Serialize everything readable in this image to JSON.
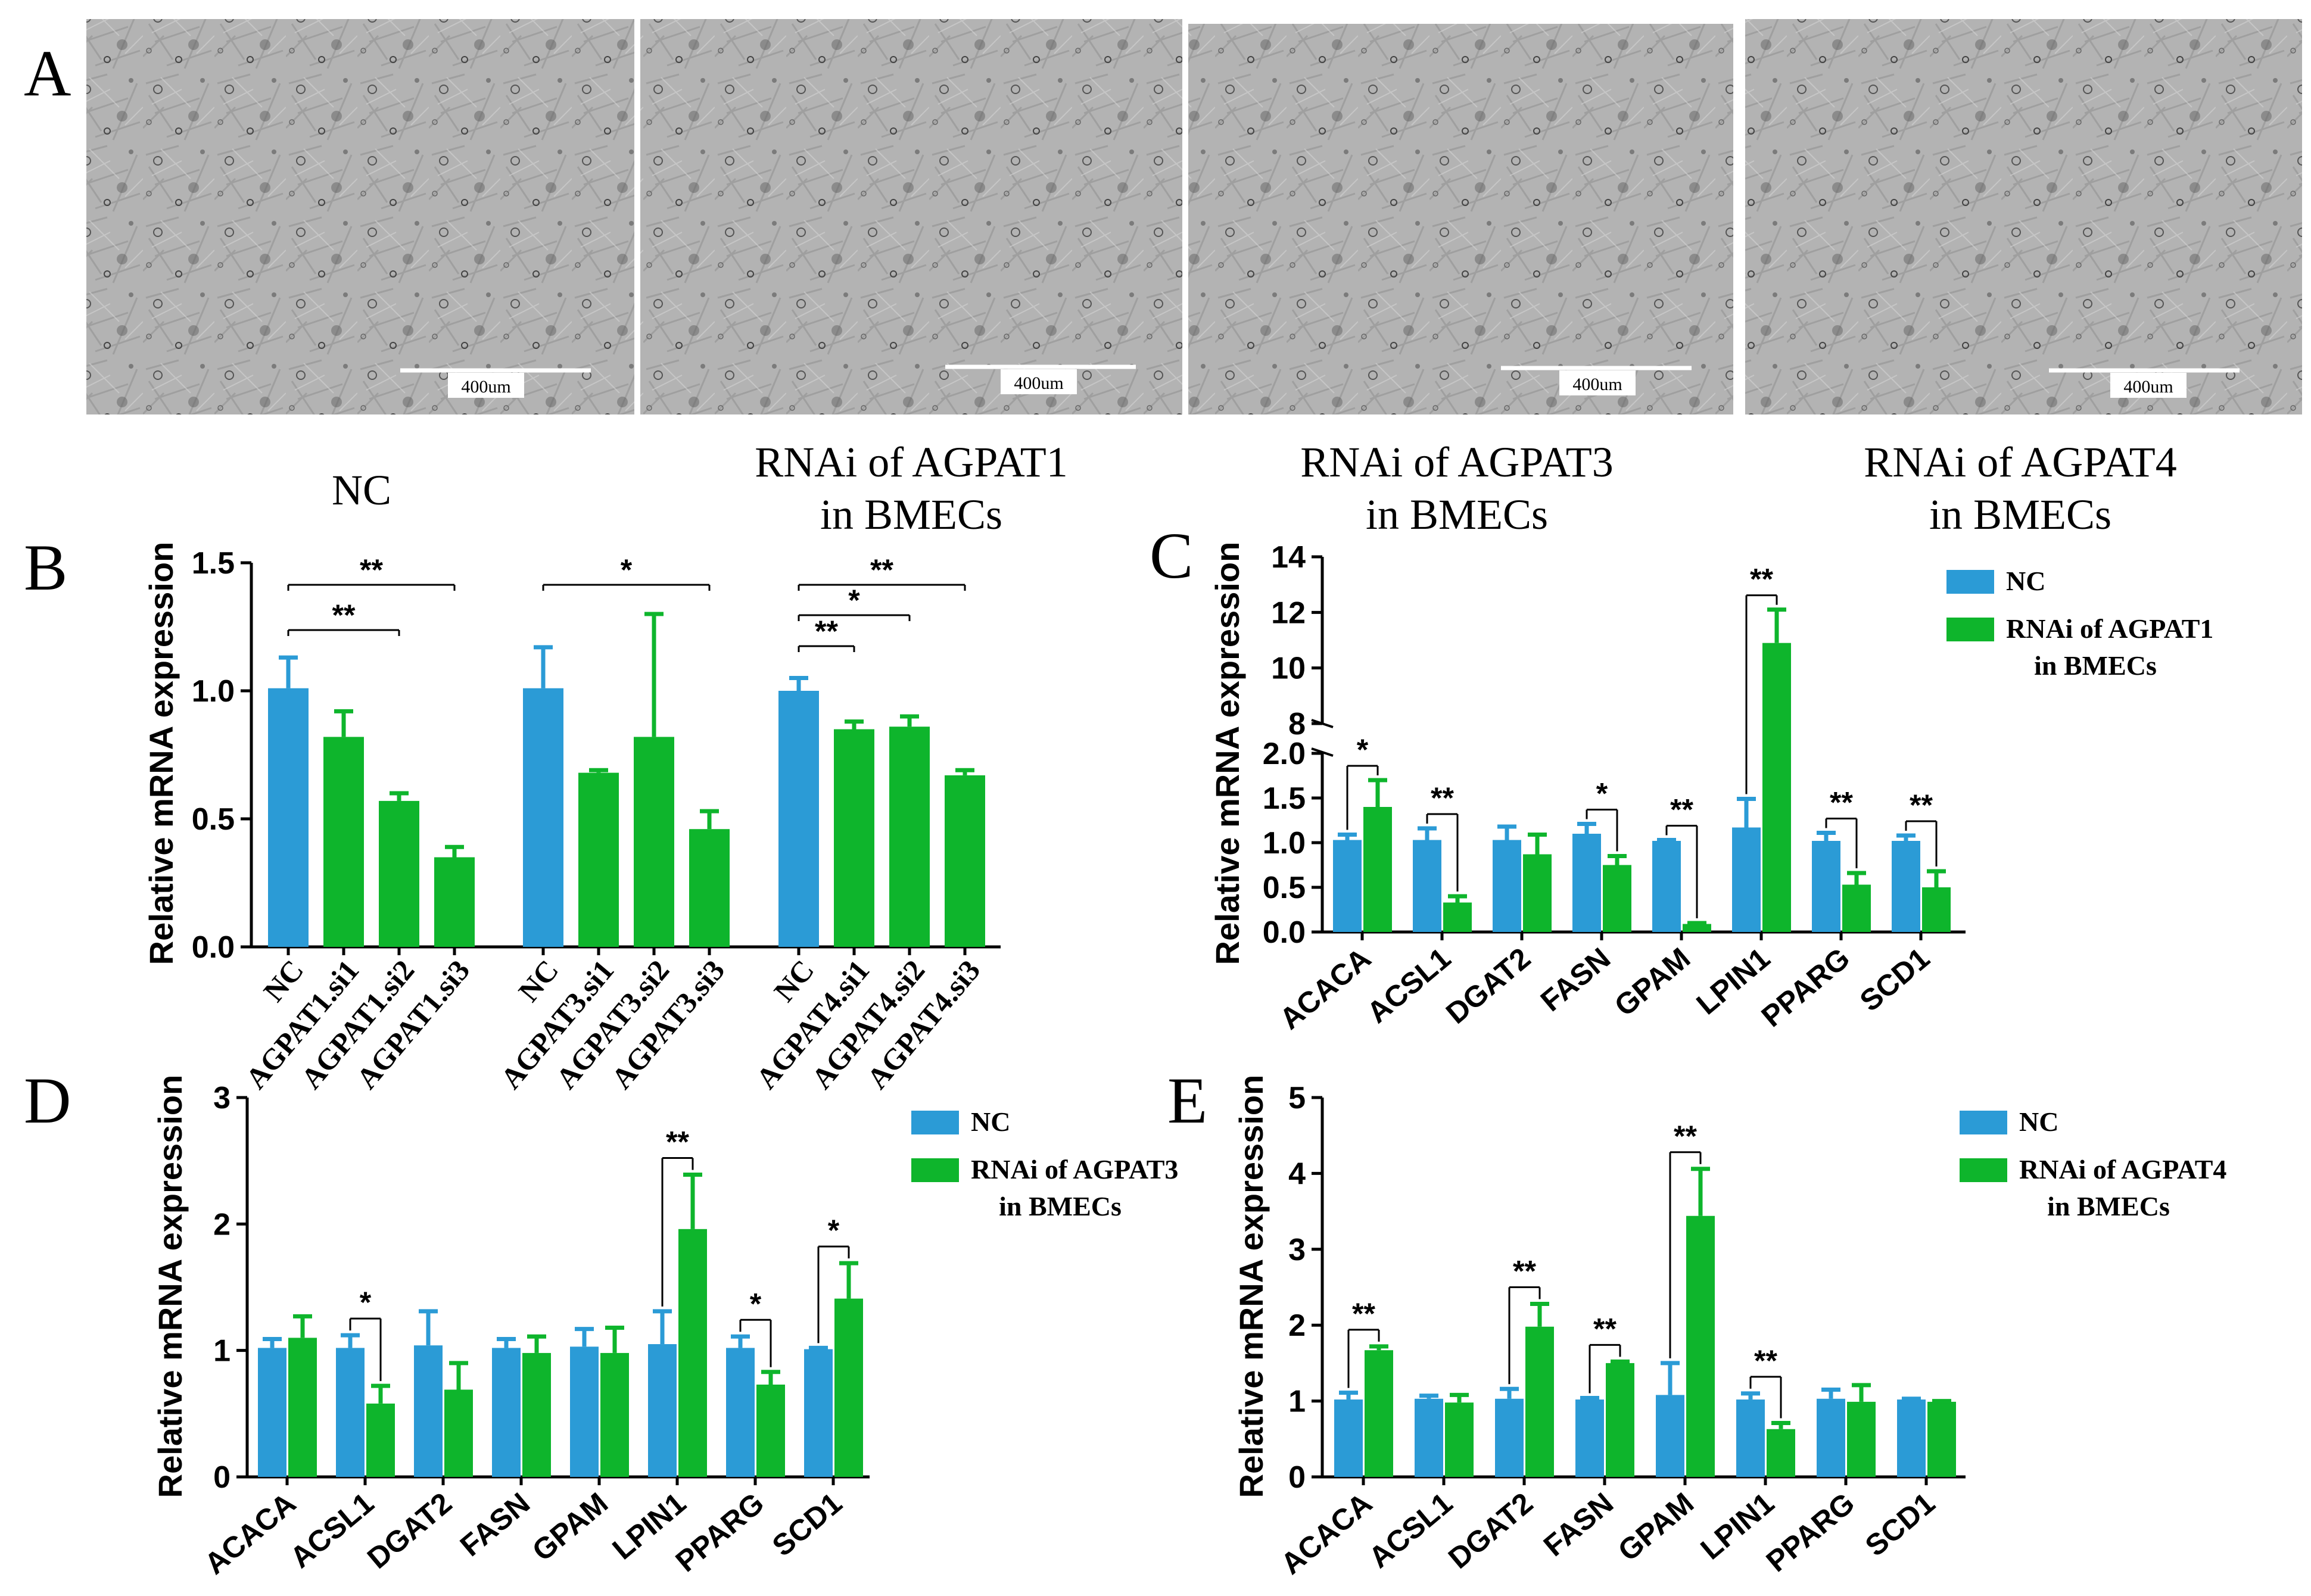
{
  "figure": {
    "panel_letters": [
      "A",
      "B",
      "C",
      "D",
      "E"
    ],
    "micrographs": [
      {
        "caption": "NC",
        "caption_line2": "",
        "scale_label": "400um"
      },
      {
        "caption": "RNAi of AGPAT1",
        "caption_line2": "in BMECs",
        "scale_label": "400um"
      },
      {
        "caption": "RNAi of AGPAT3",
        "caption_line2": "in BMECs",
        "scale_label": "400um"
      },
      {
        "caption": "RNAi of AGPAT4",
        "caption_line2": "in BMECs",
        "scale_label": "400um"
      }
    ]
  },
  "colors": {
    "nc": "#2b9bd6",
    "rnai": "#0eb52c",
    "axis": "#000000",
    "cell_bg": "#b5b5b5"
  },
  "chart_data": [
    {
      "panel": "B",
      "type": "bar",
      "title": "",
      "ylabel": "Relative mRNA expression",
      "ylim": [
        0,
        1.5
      ],
      "yticks": [
        "0.0",
        "0.5",
        "1.0",
        "1.5"
      ],
      "groups": [
        {
          "categories": [
            "NC",
            "AGPAT1.si1",
            "AGPAT1.si2",
            "AGPAT1.si3"
          ],
          "values": [
            1.01,
            0.82,
            0.57,
            0.35
          ],
          "errors": [
            0.12,
            0.1,
            0.03,
            0.04
          ]
        },
        {
          "categories": [
            "NC",
            "AGPAT3.si1",
            "AGPAT3.si2",
            "AGPAT3.si3"
          ],
          "values": [
            1.01,
            0.68,
            0.82,
            0.46
          ],
          "errors": [
            0.16,
            0.01,
            0.48,
            0.07
          ]
        },
        {
          "categories": [
            "NC",
            "AGPAT4.si1",
            "AGPAT4.si2",
            "AGPAT4.si3"
          ],
          "values": [
            1.0,
            0.85,
            0.86,
            0.67
          ],
          "errors": [
            0.05,
            0.03,
            0.04,
            0.02
          ]
        }
      ],
      "significance": [
        {
          "group": 0,
          "from": 0,
          "to": 3,
          "label": "**"
        },
        {
          "group": 0,
          "from": 0,
          "to": 2,
          "label": "**"
        },
        {
          "group": 1,
          "from": 0,
          "to": 3,
          "label": "*"
        },
        {
          "group": 2,
          "from": 0,
          "to": 3,
          "label": "**"
        },
        {
          "group": 2,
          "from": 0,
          "to": 2,
          "label": "*"
        },
        {
          "group": 2,
          "from": 0,
          "to": 1,
          "label": "**"
        }
      ]
    },
    {
      "panel": "C",
      "type": "bar",
      "ylabel": "Relative mRNA expression",
      "categories": [
        "ACACA",
        "ACSL1",
        "DGAT2",
        "FASN",
        "GPAM",
        "LPIN1",
        "PPARG",
        "SCD1"
      ],
      "series": [
        {
          "name": "NC",
          "values": [
            1.03,
            1.03,
            1.03,
            1.1,
            1.02,
            1.17,
            1.02,
            1.02
          ],
          "errors": [
            0.06,
            0.13,
            0.15,
            0.11,
            0.01,
            0.32,
            0.09,
            0.06
          ]
        },
        {
          "name": "RNAi of AGPAT1",
          "name_line2": "in BMECs",
          "values": [
            1.4,
            0.33,
            0.87,
            0.75,
            0.09,
            10.9,
            0.53,
            0.5
          ],
          "errors": [
            0.3,
            0.07,
            0.22,
            0.1,
            0.01,
            1.2,
            0.13,
            0.18
          ]
        }
      ],
      "broken_axis": {
        "lower": [
          0,
          2.0
        ],
        "upper": [
          8,
          14
        ]
      },
      "yticks_lower": [
        "0.0",
        "0.5",
        "1.0",
        "1.5",
        "2.0"
      ],
      "yticks_upper": [
        "8",
        "10",
        "12",
        "14"
      ],
      "significance": [
        "*",
        "**",
        "",
        "*",
        "**",
        "**",
        "**",
        "**"
      ]
    },
    {
      "panel": "D",
      "type": "bar",
      "ylabel": "Relative mRNA expression",
      "ylim": [
        0,
        3
      ],
      "yticks": [
        "0",
        "1",
        "2",
        "3"
      ],
      "categories": [
        "ACACA",
        "ACSL1",
        "DGAT2",
        "FASN",
        "GPAM",
        "LPIN1",
        "PPARG",
        "SCD1"
      ],
      "series": [
        {
          "name": "NC",
          "values": [
            1.02,
            1.02,
            1.04,
            1.02,
            1.03,
            1.05,
            1.02,
            1.01
          ],
          "errors": [
            0.07,
            0.1,
            0.27,
            0.07,
            0.14,
            0.26,
            0.09,
            0.01
          ]
        },
        {
          "name": "RNAi of AGPAT3",
          "name_line2": "in BMECs",
          "values": [
            1.1,
            0.58,
            0.69,
            0.98,
            0.98,
            1.96,
            0.73,
            1.41
          ],
          "errors": [
            0.17,
            0.14,
            0.21,
            0.13,
            0.2,
            0.43,
            0.1,
            0.28
          ]
        }
      ],
      "significance": [
        "",
        "*",
        "",
        "",
        "",
        "**",
        "*",
        "*"
      ]
    },
    {
      "panel": "E",
      "type": "bar",
      "ylabel": "Relative mRNA expression",
      "ylim": [
        0,
        5
      ],
      "yticks": [
        "0",
        "1",
        "2",
        "3",
        "4",
        "5"
      ],
      "categories": [
        "ACACA",
        "ACSL1",
        "DGAT2",
        "FASN",
        "GPAM",
        "LPIN1",
        "PPARG",
        "SCD1"
      ],
      "series": [
        {
          "name": "NC",
          "values": [
            1.02,
            1.03,
            1.03,
            1.02,
            1.08,
            1.02,
            1.03,
            1.02
          ],
          "errors": [
            0.09,
            0.04,
            0.13,
            0.02,
            0.42,
            0.08,
            0.12,
            0.01
          ]
        },
        {
          "name": "RNAi of AGPAT4",
          "name_line2": "in BMECs",
          "values": [
            1.67,
            0.98,
            1.98,
            1.5,
            3.44,
            0.63,
            0.99,
            0.99
          ],
          "errors": [
            0.05,
            0.1,
            0.3,
            0.02,
            0.62,
            0.08,
            0.22,
            0.01
          ]
        }
      ],
      "significance": [
        "**",
        "",
        "**",
        "**",
        "**",
        "**",
        "",
        ""
      ]
    }
  ]
}
